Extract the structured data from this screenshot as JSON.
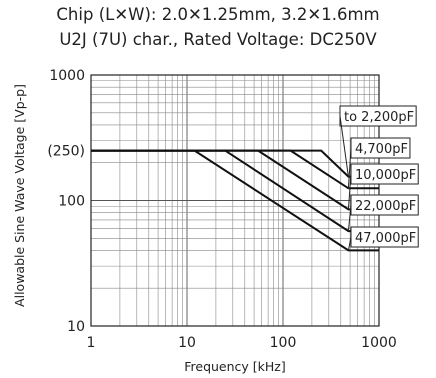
{
  "chart_data": {
    "type": "line",
    "title": "Chip (L✕W): 2.0✕1.25mm, 3.2✕1.6mm",
    "subtitle": "U2J (7U) char., Rated Voltage: DC250V",
    "xlabel": "Frequency [kHz]",
    "ylabel": "Allowable Sine Wave Voltage [Vp-p]",
    "xscale": "log",
    "yscale": "log",
    "xlim": [
      1,
      1000
    ],
    "ylim": [
      10,
      1000
    ],
    "xticks": [
      {
        "value": 1,
        "label": "1"
      },
      {
        "value": 10,
        "label": "10"
      },
      {
        "value": 100,
        "label": "100"
      },
      {
        "value": 1000,
        "label": "1000"
      }
    ],
    "yticks": [
      {
        "value": 10,
        "label": "10"
      },
      {
        "value": 100,
        "label": "100"
      },
      {
        "value": 250,
        "label": "(250)"
      },
      {
        "value": 1000,
        "label": "1000"
      }
    ],
    "grid": true,
    "legend": "callouts at right",
    "series": [
      {
        "name": "to 2,200pF",
        "x": [
          1,
          250,
          480,
          1000
        ],
        "y": [
          250,
          250,
          155,
          155
        ]
      },
      {
        "name": "4,700pF",
        "x": [
          1,
          120,
          480,
          1000
        ],
        "y": [
          250,
          250,
          125,
          125
        ]
      },
      {
        "name": "10,000pF",
        "x": [
          1,
          55,
          480,
          1000
        ],
        "y": [
          250,
          250,
          85,
          85
        ]
      },
      {
        "name": "22,000pF",
        "x": [
          1,
          25,
          480,
          1000
        ],
        "y": [
          250,
          250,
          57,
          57
        ]
      },
      {
        "name": "47,000pF",
        "x": [
          1,
          12,
          480,
          1000
        ],
        "y": [
          250,
          250,
          40,
          40
        ]
      }
    ]
  }
}
